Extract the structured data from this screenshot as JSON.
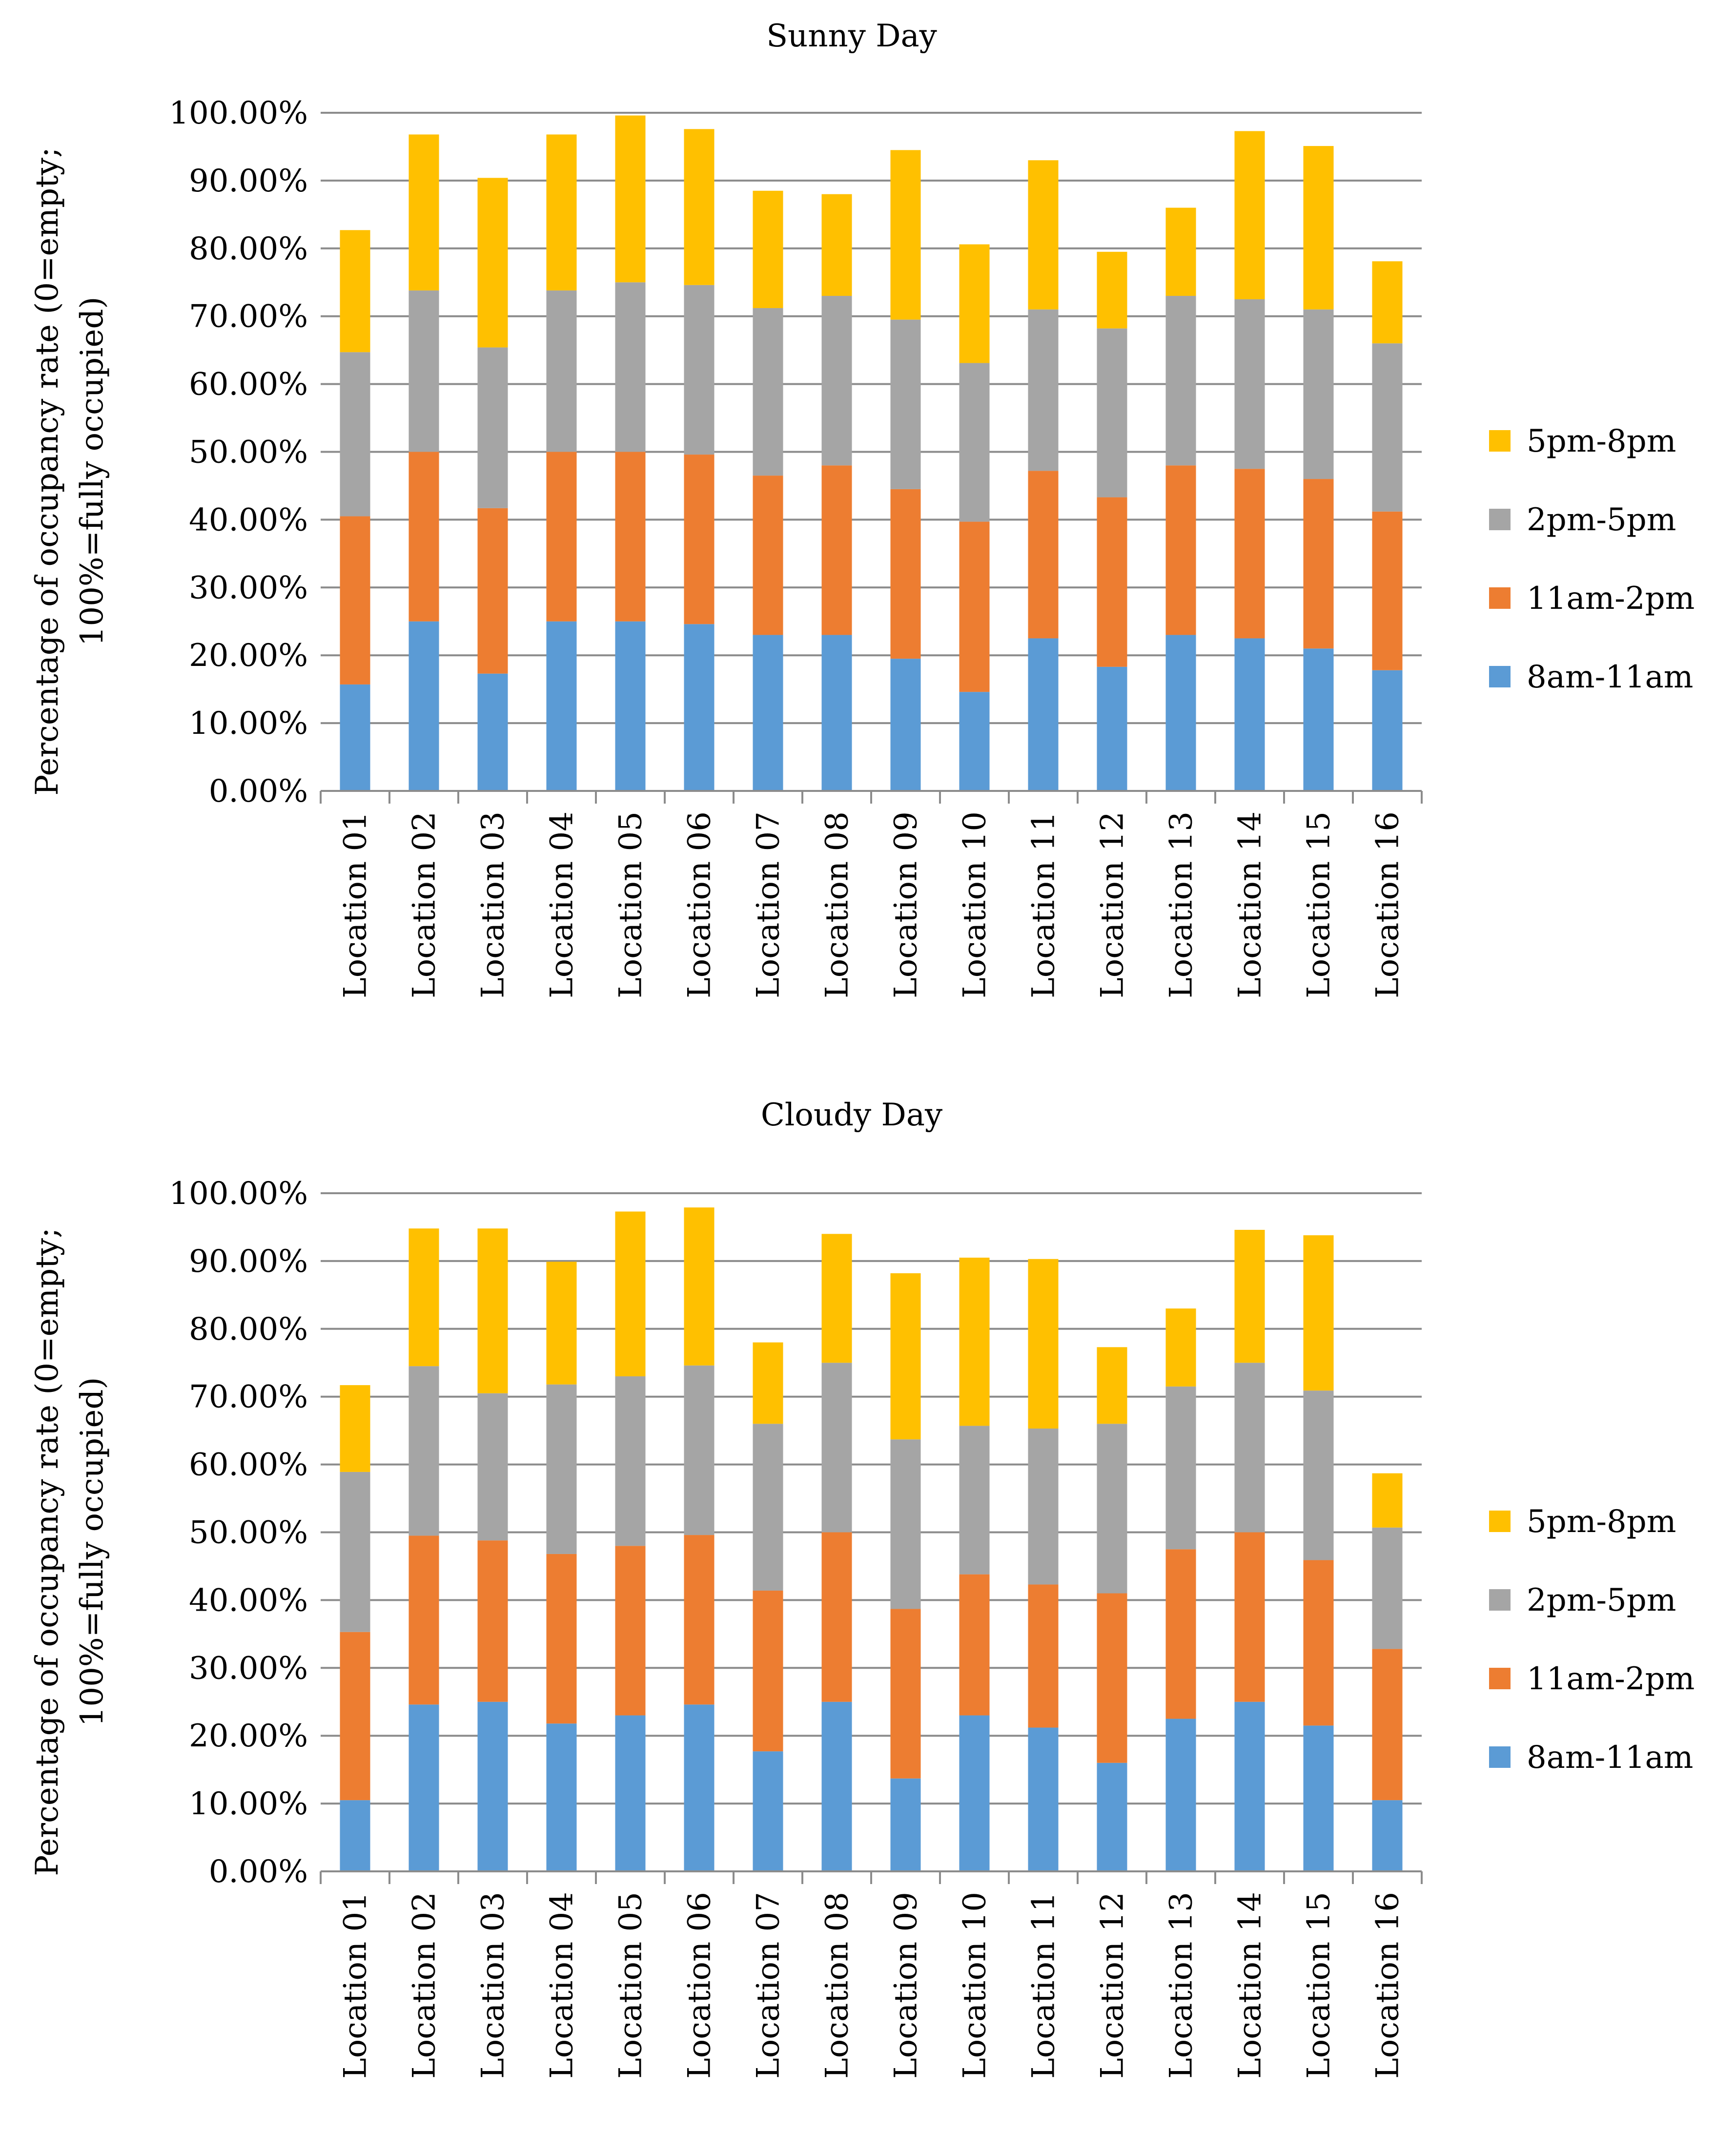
{
  "chart_data": [
    {
      "type": "bar",
      "stacked": true,
      "title": "Sunny Day",
      "xlabel": "",
      "ylabel": "Percentage of occupancy rate (0=empty; 100%=fully occupied)",
      "ylabel_lines": [
        "Percentage of occupancy rate (0=empty;",
        "100%=fully occupied)"
      ],
      "ylim": [
        0,
        100
      ],
      "yticks": [
        "0.00%",
        "10.00%",
        "20.00%",
        "30.00%",
        "40.00%",
        "50.00%",
        "60.00%",
        "70.00%",
        "80.00%",
        "90.00%",
        "100.00%"
      ],
      "grid": true,
      "legend_position": "right",
      "categories": [
        "Location 01",
        "Location 02",
        "Location 03",
        "Location 04",
        "Location 05",
        "Location 06",
        "Location 07",
        "Location 08",
        "Location 09",
        "Location 10",
        "Location 11",
        "Location 12",
        "Location 13",
        "Location 14",
        "Location 15",
        "Location 16"
      ],
      "series": [
        {
          "name": "8am-11am",
          "color": "#5B9BD5",
          "values": [
            15.7,
            25.0,
            17.3,
            25.0,
            25.0,
            24.6,
            23.0,
            23.0,
            19.5,
            14.6,
            22.5,
            18.3,
            23.0,
            22.5,
            21.0,
            17.8
          ]
        },
        {
          "name": "11am-2pm",
          "color": "#ED7D31",
          "values": [
            24.8,
            25.0,
            24.4,
            25.0,
            25.0,
            25.0,
            23.5,
            25.0,
            25.0,
            25.1,
            24.7,
            25.0,
            25.0,
            25.0,
            25.0,
            23.4
          ]
        },
        {
          "name": "2pm-5pm",
          "color": "#A5A5A5",
          "values": [
            24.2,
            23.8,
            23.7,
            23.8,
            25.0,
            25.0,
            24.7,
            25.0,
            25.0,
            23.4,
            23.8,
            24.9,
            25.0,
            25.0,
            25.0,
            24.8
          ]
        },
        {
          "name": "5pm-8pm",
          "color": "#FFC000",
          "values": [
            18.0,
            23.0,
            25.0,
            23.0,
            24.6,
            23.0,
            17.3,
            15.0,
            25.0,
            17.5,
            22.0,
            11.3,
            13.0,
            24.8,
            24.1,
            12.1
          ]
        }
      ]
    },
    {
      "type": "bar",
      "stacked": true,
      "title": "Cloudy Day",
      "xlabel": "",
      "ylabel": "Percentage of occupancy rate (0=empty; 100%=fully occupied)",
      "ylabel_lines": [
        "Percentage of occupancy rate (0=empty;",
        "100%=fully occupied)"
      ],
      "ylim": [
        0,
        100
      ],
      "yticks": [
        "0.00%",
        "10.00%",
        "20.00%",
        "30.00%",
        "40.00%",
        "50.00%",
        "60.00%",
        "70.00%",
        "80.00%",
        "90.00%",
        "100.00%"
      ],
      "grid": true,
      "legend_position": "right",
      "categories": [
        "Location 01",
        "Location 02",
        "Location 03",
        "Location 04",
        "Location 05",
        "Location 06",
        "Location 07",
        "Location 08",
        "Location 09",
        "Location 10",
        "Location 11",
        "Location 12",
        "Location 13",
        "Location 14",
        "Location 15",
        "Location 16"
      ],
      "series": [
        {
          "name": "8am-11am",
          "color": "#5B9BD5",
          "values": [
            10.5,
            24.6,
            25.0,
            21.8,
            23.0,
            24.6,
            17.7,
            25.0,
            13.7,
            23.0,
            21.2,
            16.0,
            22.5,
            25.0,
            21.5,
            10.5
          ]
        },
        {
          "name": "11am-2pm",
          "color": "#ED7D31",
          "values": [
            24.8,
            24.9,
            23.8,
            25.0,
            25.0,
            25.0,
            23.7,
            25.0,
            25.0,
            20.8,
            21.1,
            25.0,
            25.0,
            25.0,
            24.4,
            22.3
          ]
        },
        {
          "name": "2pm-5pm",
          "color": "#A5A5A5",
          "values": [
            23.6,
            25.0,
            21.7,
            25.0,
            25.0,
            25.0,
            24.6,
            25.0,
            25.0,
            21.9,
            23.0,
            25.0,
            24.0,
            25.0,
            25.0,
            17.9
          ]
        },
        {
          "name": "5pm-8pm",
          "color": "#FFC000",
          "values": [
            12.8,
            20.3,
            24.3,
            18.1,
            24.3,
            23.3,
            12.0,
            19.0,
            24.5,
            24.8,
            25.0,
            11.3,
            11.5,
            19.6,
            22.9,
            8.0
          ]
        }
      ]
    }
  ]
}
